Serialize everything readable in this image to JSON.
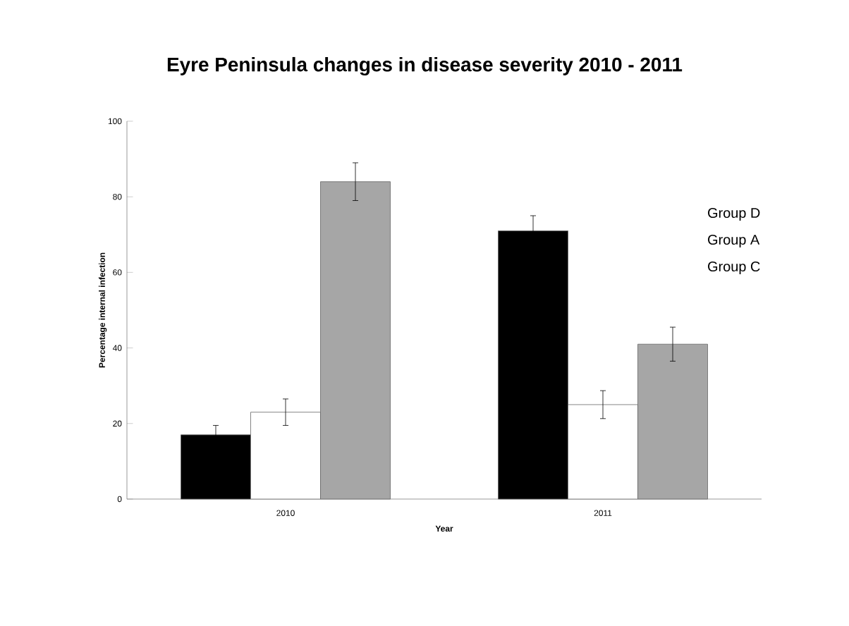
{
  "chart_data": {
    "type": "bar",
    "title": "Eyre Peninsula changes in disease severity 2010 - 2011",
    "xlabel": "Year",
    "ylabel": "Percentage internal infection",
    "categories": [
      "2010",
      "2011"
    ],
    "series": [
      {
        "color": "#000000",
        "values": [
          17,
          71
        ],
        "errors": [
          2.5,
          4
        ]
      },
      {
        "color": "#ffffff",
        "values": [
          23,
          25
        ],
        "errors": [
          3.5,
          3.7
        ]
      },
      {
        "color": "#a6a6a6",
        "values": [
          84,
          41
        ],
        "errors": [
          5,
          4.5
        ]
      }
    ],
    "ylim": [
      0,
      100
    ],
    "yticks": [
      0,
      20,
      40,
      60,
      80,
      100
    ],
    "grid": false,
    "annotations": [
      "Group D",
      "Group A",
      "Group C"
    ]
  }
}
